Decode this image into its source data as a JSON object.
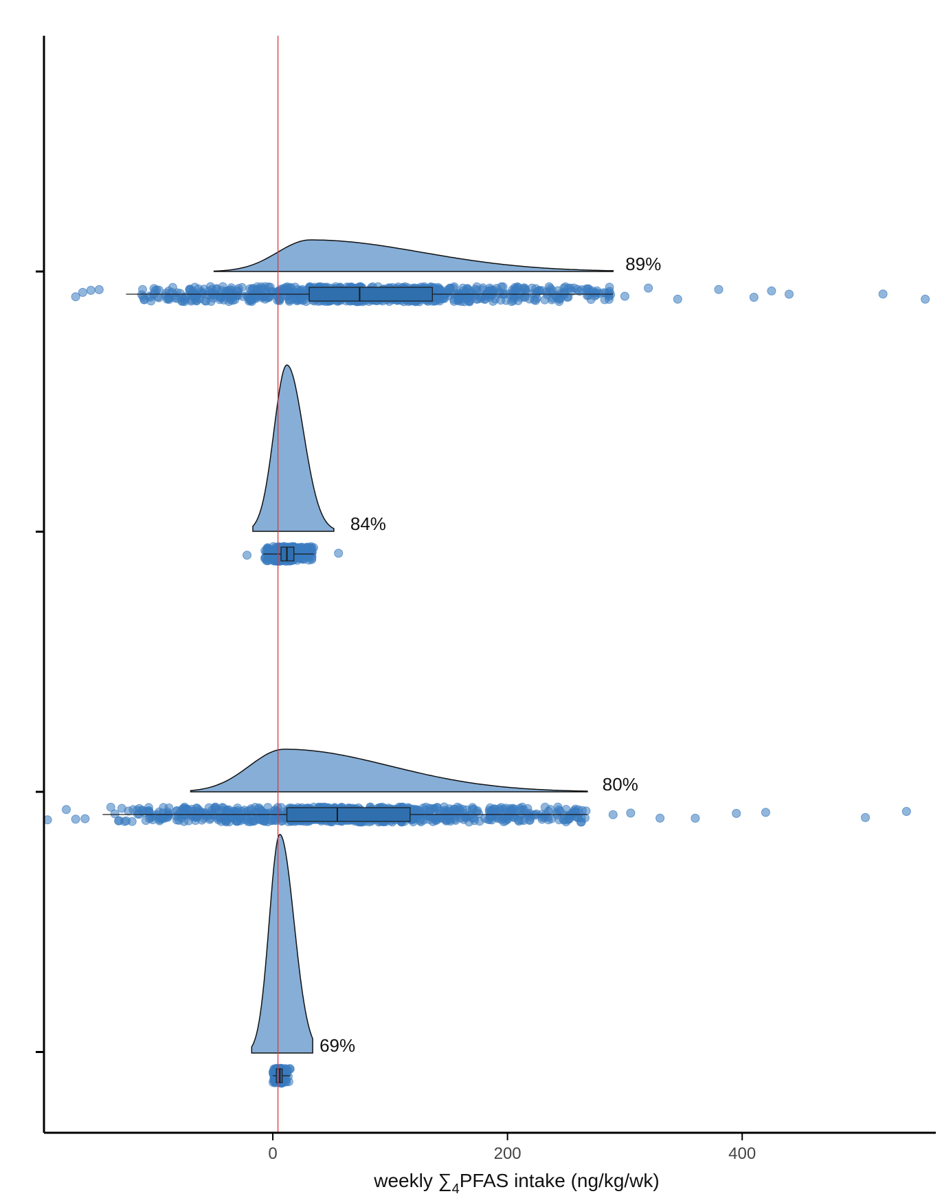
{
  "chart_data": {
    "type": "raincloud",
    "xlabel": {
      "pre": "weekly ∑",
      "sub": "4",
      "post": "PFAS intake (ng/kg/wk)"
    },
    "xlim": [
      -195,
      565
    ],
    "xticks": [
      0,
      200,
      400
    ],
    "reference_line": {
      "x": 4.4,
      "color": "#d9363e"
    },
    "colors": {
      "density": "#86aed6",
      "points": "#3a7bbf",
      "box": "#2f6fad",
      "outline": "#111111"
    },
    "groups": [
      {
        "label": "89%",
        "density": {
          "peak": 32,
          "sd_left": 28,
          "sd_right": 95,
          "min": -50,
          "max": 290
        },
        "box": {
          "q1": 31,
          "median": 74,
          "q3": 136,
          "whisker_low": -125,
          "whisker_high": 290
        },
        "points": {
          "n": 900,
          "outliers": [
            -168,
            -162,
            -155,
            -148,
            300,
            320,
            345,
            380,
            410,
            425,
            440,
            520,
            556
          ]
        }
      },
      {
        "label": "84%",
        "density": {
          "peak": 12,
          "sd_left": 11,
          "sd_right": 14,
          "min": -17,
          "max": 52
        },
        "box": {
          "q1": 7,
          "median": 12,
          "q3": 18,
          "whisker_low": -8,
          "whisker_high": 35
        },
        "points": {
          "n": 350,
          "outliers": [
            -22,
            56
          ]
        }
      },
      {
        "label": "80%",
        "density": {
          "peak": 10,
          "sd_left": 30,
          "sd_right": 90,
          "min": -70,
          "max": 268
        },
        "box": {
          "q1": 12,
          "median": 55,
          "q3": 117,
          "whisker_low": -145,
          "whisker_high": 268
        },
        "points": {
          "n": 900,
          "outliers": [
            -192,
            -176,
            -168,
            -160,
            290,
            305,
            330,
            360,
            395,
            420,
            505,
            540
          ]
        }
      },
      {
        "label": "69%",
        "density": {
          "peak": 6,
          "sd_left": 9,
          "sd_right": 12,
          "min": -18,
          "max": 34
        },
        "box": {
          "q1": 3,
          "median": 6,
          "q3": 8,
          "whisker_low": 0,
          "whisker_high": 15
        },
        "points": {
          "n": 160,
          "outliers": []
        }
      }
    ]
  }
}
